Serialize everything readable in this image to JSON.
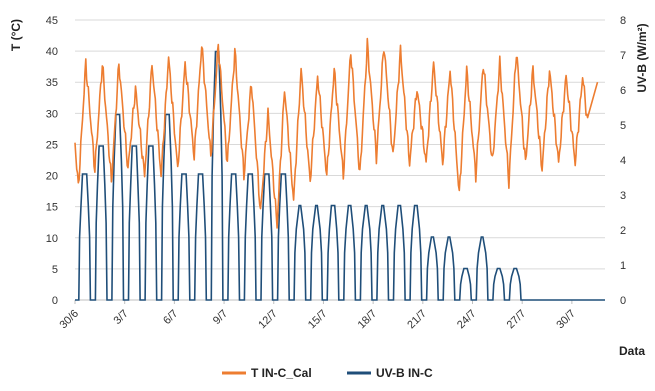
{
  "chart_data": {
    "type": "line",
    "xlabel": "Data",
    "ylabel_left": "T (°C)",
    "ylabel_right": "UV-B (W/m²)",
    "y_left": {
      "min": 0,
      "max": 45,
      "ticks": [
        0,
        5,
        10,
        15,
        20,
        25,
        30,
        35,
        40,
        45
      ]
    },
    "y_right": {
      "min": 0,
      "max": 8,
      "ticks": [
        0,
        1,
        2,
        3,
        4,
        5,
        6,
        7,
        8
      ]
    },
    "x_range": [
      0,
      32
    ],
    "x_ticks": [
      {
        "value": 0,
        "label": "30/6"
      },
      {
        "value": 3,
        "label": "3/7"
      },
      {
        "value": 6,
        "label": "6/7"
      },
      {
        "value": 9,
        "label": "9/7"
      },
      {
        "value": 12,
        "label": "12/7"
      },
      {
        "value": 15,
        "label": "15/7"
      },
      {
        "value": 18,
        "label": "18/7"
      },
      {
        "value": 21,
        "label": "21/7"
      },
      {
        "value": 24,
        "label": "24/7"
      },
      {
        "value": 27,
        "label": "27/7"
      },
      {
        "value": 30,
        "label": "30/7"
      }
    ],
    "grid": "horizontal",
    "legend_position": "bottom",
    "series": [
      {
        "name": "T IN-C_Cal",
        "color": "#ED7D31",
        "axis": "left",
        "daily_min": [
          18,
          21,
          19,
          21,
          20,
          20,
          21,
          23,
          23,
          22,
          20,
          14,
          12,
          16,
          19,
          20,
          20,
          20,
          23,
          23,
          22,
          22,
          22,
          17,
          20,
          22,
          19,
          22,
          21,
          22,
          22
        ],
        "daily_max": [
          38,
          38,
          38,
          34,
          38,
          39,
          38,
          41,
          41,
          40,
          35,
          30,
          34,
          37,
          36,
          37,
          40,
          41,
          41,
          40,
          34,
          38,
          37,
          37,
          38,
          38,
          40,
          37,
          37,
          36,
          36
        ],
        "last_value": 35
      },
      {
        "name": "UV-B IN-C",
        "color": "#1F4E79",
        "axis": "right",
        "daily_peak": [
          3.6,
          4.4,
          5.3,
          4.4,
          4.4,
          5.3,
          3.6,
          3.6,
          7.1,
          3.6,
          3.6,
          3.6,
          3.6,
          2.7,
          2.7,
          2.7,
          2.7,
          2.7,
          2.7,
          2.7,
          2.7,
          1.8,
          1.8,
          0.9,
          1.8,
          0.9,
          0.9,
          0,
          0,
          0,
          0,
          0
        ],
        "peak_width_days": [
          0.25,
          0.25,
          0.22,
          0.25,
          0.25,
          0.22,
          0.25,
          0.25,
          0.2,
          0.25,
          0.25,
          0.25,
          0.25,
          0.1,
          0.1,
          0.2,
          0.15,
          0.1,
          0.1,
          0.15,
          0.15,
          0.12,
          0.1,
          0.2,
          0.1,
          0.15,
          0.15,
          0,
          0,
          0,
          0,
          0
        ]
      }
    ]
  }
}
